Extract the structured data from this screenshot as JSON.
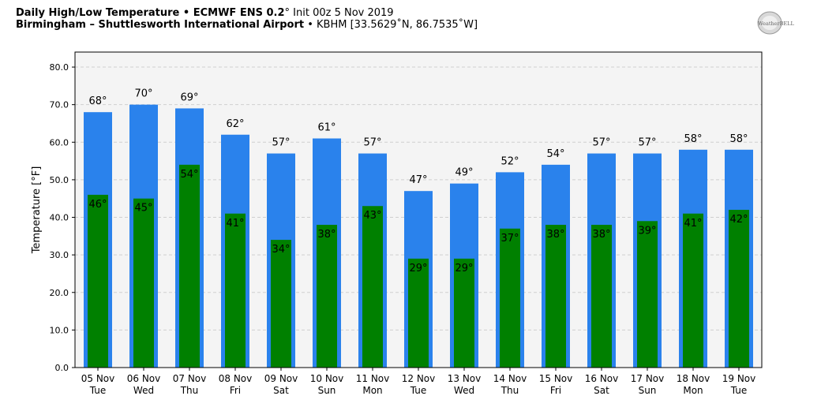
{
  "header": {
    "line1_bold": "Daily High/Low Temperature • ECMWF ENS 0.2",
    "line1_deg": "°",
    "line1_rest": " Init 00z 5 Nov 2019",
    "line2_bold": "Birmingham – Shuttlesworth International Airport",
    "line2_rest": " • KBHM [33.5629˚N, 86.7535˚W]"
  },
  "logo": {
    "text": "WeatherBELL",
    "icon": "weatherbell-logo-icon"
  },
  "colors": {
    "high": "#2a82ec",
    "low": "#008000",
    "plot_bg": "#f4f4f4"
  },
  "chart_data": {
    "type": "bar",
    "ylabel": "Temperature [°F]",
    "ylim": [
      0,
      84
    ],
    "yticks": [
      "0.0",
      "10.0",
      "20.0",
      "30.0",
      "40.0",
      "50.0",
      "60.0",
      "70.0",
      "80.0"
    ],
    "grid": true,
    "categories": [
      "05 Nov",
      "06 Nov",
      "07 Nov",
      "08 Nov",
      "09 Nov",
      "10 Nov",
      "11 Nov",
      "12 Nov",
      "13 Nov",
      "14 Nov",
      "15 Nov",
      "16 Nov",
      "17 Nov",
      "18 Nov",
      "19 Nov"
    ],
    "weekdays": [
      "Tue",
      "Wed",
      "Thu",
      "Fri",
      "Sat",
      "Sun",
      "Mon",
      "Tue",
      "Wed",
      "Thu",
      "Fri",
      "Sat",
      "Sun",
      "Mon",
      "Tue"
    ],
    "series": [
      {
        "values": [
          68,
          70,
          69,
          62,
          57,
          61,
          57,
          47,
          49,
          52,
          54,
          57,
          57,
          58,
          58
        ]
      },
      {
        "values": [
          46,
          45,
          54,
          41,
          34,
          38,
          43,
          29,
          29,
          37,
          38,
          38,
          39,
          41,
          42
        ]
      }
    ]
  }
}
